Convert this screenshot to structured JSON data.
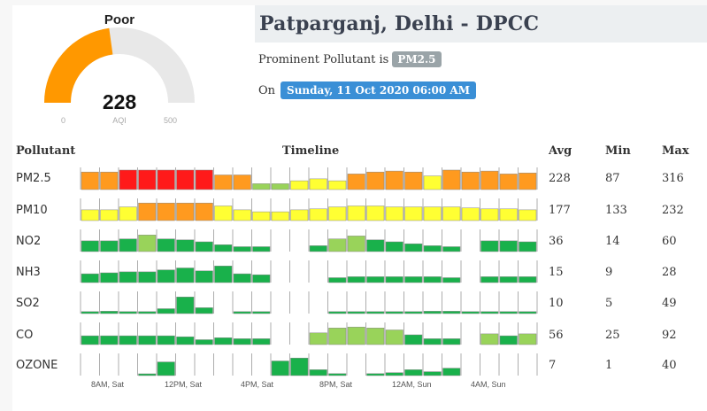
{
  "gauge": {
    "category": "Poor",
    "value": 228,
    "unit": "AQI",
    "min": "0",
    "max": "500",
    "fraction": 0.456,
    "fill_color": "#ff9800",
    "track_color": "#e8e8e8"
  },
  "station": {
    "title": "Patparganj, Delhi - DPCC",
    "prominent_label": "Prominent Pollutant is",
    "prominent_value": "PM2.5",
    "date_label": "On",
    "date_value": "Sunday, 11 Oct 2020 06:00 AM"
  },
  "table": {
    "headers": {
      "pollutant": "Pollutant",
      "timeline": "Timeline",
      "avg": "Avg",
      "min": "Min",
      "max": "Max"
    },
    "x_labels": [
      "8AM, Sat",
      "12PM, Sat",
      "4PM, Sat",
      "8PM, Sat",
      "12AM, Sun",
      "4AM, Sun"
    ],
    "colors": {
      "red": "#ff1a1a",
      "orange": "#ff9a1f",
      "yellow": "#ffff33",
      "lightgreen": "#99d35a",
      "green": "#19b14b",
      "tick": "#999999"
    },
    "rows": [
      {
        "name": "PM2.5",
        "avg": "228",
        "min": "87",
        "max": "316",
        "bars": [
          [
            0.9,
            "orange"
          ],
          [
            0.9,
            "orange"
          ],
          [
            1.0,
            "red"
          ],
          [
            1.0,
            "red"
          ],
          [
            1.0,
            "red"
          ],
          [
            1.0,
            "red"
          ],
          [
            1.0,
            "red"
          ],
          [
            0.75,
            "orange"
          ],
          [
            0.75,
            "orange"
          ],
          [
            0.3,
            "lightgreen"
          ],
          [
            0.3,
            "lightgreen"
          ],
          [
            0.45,
            "yellow"
          ],
          [
            0.55,
            "yellow"
          ],
          [
            0.45,
            "yellow"
          ],
          [
            0.8,
            "orange"
          ],
          [
            0.9,
            "orange"
          ],
          [
            0.95,
            "orange"
          ],
          [
            0.9,
            "orange"
          ],
          [
            0.7,
            "yellow"
          ],
          [
            1.0,
            "orange"
          ],
          [
            0.9,
            "orange"
          ],
          [
            0.95,
            "orange"
          ],
          [
            0.8,
            "orange"
          ],
          [
            0.85,
            "orange"
          ]
        ]
      },
      {
        "name": "PM10",
        "avg": "177",
        "min": "133",
        "max": "232",
        "bars": [
          [
            0.55,
            "yellow"
          ],
          [
            0.55,
            "yellow"
          ],
          [
            0.7,
            "yellow"
          ],
          [
            0.9,
            "orange"
          ],
          [
            0.9,
            "orange"
          ],
          [
            0.9,
            "orange"
          ],
          [
            0.9,
            "orange"
          ],
          [
            0.75,
            "yellow"
          ],
          [
            0.55,
            "yellow"
          ],
          [
            0.45,
            "yellow"
          ],
          [
            0.45,
            "yellow"
          ],
          [
            0.55,
            "yellow"
          ],
          [
            0.6,
            "yellow"
          ],
          [
            0.7,
            "yellow"
          ],
          [
            0.75,
            "yellow"
          ],
          [
            0.75,
            "yellow"
          ],
          [
            0.7,
            "yellow"
          ],
          [
            0.7,
            "yellow"
          ],
          [
            0.7,
            "yellow"
          ],
          [
            0.7,
            "yellow"
          ],
          [
            0.65,
            "yellow"
          ],
          [
            0.6,
            "yellow"
          ],
          [
            0.6,
            "yellow"
          ],
          [
            0.55,
            "yellow"
          ]
        ]
      },
      {
        "name": "NO2",
        "avg": "36",
        "min": "14",
        "max": "60",
        "bars": [
          [
            0.55,
            "green"
          ],
          [
            0.55,
            "green"
          ],
          [
            0.65,
            "green"
          ],
          [
            0.85,
            "lightgreen"
          ],
          [
            0.65,
            "green"
          ],
          [
            0.6,
            "green"
          ],
          [
            0.5,
            "green"
          ],
          [
            0.35,
            "green"
          ],
          [
            0.25,
            "green"
          ],
          [
            0.25,
            "green"
          ],
          [
            0,
            "green"
          ],
          [
            0,
            "green"
          ],
          [
            0.3,
            "green"
          ],
          [
            0.65,
            "lightgreen"
          ],
          [
            0.8,
            "lightgreen"
          ],
          [
            0.6,
            "green"
          ],
          [
            0.5,
            "green"
          ],
          [
            0.4,
            "green"
          ],
          [
            0.3,
            "green"
          ],
          [
            0.25,
            "green"
          ],
          [
            0,
            "green"
          ],
          [
            0.55,
            "green"
          ],
          [
            0.55,
            "green"
          ],
          [
            0.5,
            "green"
          ]
        ]
      },
      {
        "name": "NH3",
        "avg": "15",
        "min": "9",
        "max": "28",
        "bars": [
          [
            0.45,
            "green"
          ],
          [
            0.5,
            "green"
          ],
          [
            0.55,
            "green"
          ],
          [
            0.55,
            "green"
          ],
          [
            0.65,
            "green"
          ],
          [
            0.75,
            "green"
          ],
          [
            0.6,
            "green"
          ],
          [
            0.85,
            "green"
          ],
          [
            0.45,
            "green"
          ],
          [
            0.4,
            "green"
          ],
          [
            0,
            "green"
          ],
          [
            0,
            "green"
          ],
          [
            0,
            "green"
          ],
          [
            0.25,
            "green"
          ],
          [
            0.3,
            "green"
          ],
          [
            0.3,
            "green"
          ],
          [
            0.3,
            "green"
          ],
          [
            0.3,
            "green"
          ],
          [
            0.3,
            "green"
          ],
          [
            0.25,
            "green"
          ],
          [
            0,
            "green"
          ],
          [
            0.3,
            "green"
          ],
          [
            0.3,
            "green"
          ],
          [
            0.3,
            "green"
          ]
        ]
      },
      {
        "name": "SO2",
        "avg": "10",
        "min": "5",
        "max": "49",
        "bars": [
          [
            0.1,
            "green"
          ],
          [
            0.12,
            "green"
          ],
          [
            0.1,
            "green"
          ],
          [
            0.1,
            "green"
          ],
          [
            0.25,
            "green"
          ],
          [
            0.85,
            "green"
          ],
          [
            0.3,
            "green"
          ],
          [
            0,
            "green"
          ],
          [
            0.1,
            "green"
          ],
          [
            0.1,
            "green"
          ],
          [
            0,
            "green"
          ],
          [
            0,
            "green"
          ],
          [
            0,
            "green"
          ],
          [
            0.1,
            "green"
          ],
          [
            0.1,
            "green"
          ],
          [
            0.1,
            "green"
          ],
          [
            0.1,
            "green"
          ],
          [
            0.1,
            "green"
          ],
          [
            0.12,
            "green"
          ],
          [
            0.12,
            "green"
          ],
          [
            0.1,
            "green"
          ],
          [
            0.1,
            "green"
          ],
          [
            0.1,
            "green"
          ],
          [
            0.1,
            "green"
          ]
        ]
      },
      {
        "name": "CO",
        "avg": "56",
        "min": "25",
        "max": "92",
        "bars": [
          [
            0.45,
            "green"
          ],
          [
            0.45,
            "green"
          ],
          [
            0.45,
            "green"
          ],
          [
            0.45,
            "green"
          ],
          [
            0.45,
            "green"
          ],
          [
            0.4,
            "green"
          ],
          [
            0.25,
            "green"
          ],
          [
            0.35,
            "green"
          ],
          [
            0.3,
            "green"
          ],
          [
            0.3,
            "green"
          ],
          [
            0,
            "green"
          ],
          [
            0,
            "green"
          ],
          [
            0.6,
            "lightgreen"
          ],
          [
            0.85,
            "lightgreen"
          ],
          [
            0.9,
            "lightgreen"
          ],
          [
            0.85,
            "lightgreen"
          ],
          [
            0.75,
            "lightgreen"
          ],
          [
            0.5,
            "green"
          ],
          [
            0.3,
            "green"
          ],
          [
            0.3,
            "green"
          ],
          [
            0,
            "green"
          ],
          [
            0.55,
            "lightgreen"
          ],
          [
            0.45,
            "green"
          ],
          [
            0.55,
            "lightgreen"
          ]
        ]
      },
      {
        "name": "OZONE",
        "avg": "7",
        "min": "1",
        "max": "40",
        "bars": [
          [
            0,
            "green"
          ],
          [
            0,
            "green"
          ],
          [
            0,
            "green"
          ],
          [
            0.05,
            "green"
          ],
          [
            0.7,
            "green"
          ],
          [
            0,
            "green"
          ],
          [
            0,
            "green"
          ],
          [
            0,
            "green"
          ],
          [
            0,
            "green"
          ],
          [
            0,
            "green"
          ],
          [
            0.75,
            "green"
          ],
          [
            0.9,
            "green"
          ],
          [
            0.3,
            "green"
          ],
          [
            0.1,
            "green"
          ],
          [
            0,
            "green"
          ],
          [
            0.1,
            "green"
          ],
          [
            0.15,
            "green"
          ],
          [
            0.3,
            "green"
          ],
          [
            0.2,
            "green"
          ],
          [
            0.38,
            "green"
          ],
          [
            0,
            "green"
          ],
          [
            0,
            "green"
          ],
          [
            0,
            "green"
          ],
          [
            0,
            "green"
          ]
        ]
      }
    ]
  }
}
